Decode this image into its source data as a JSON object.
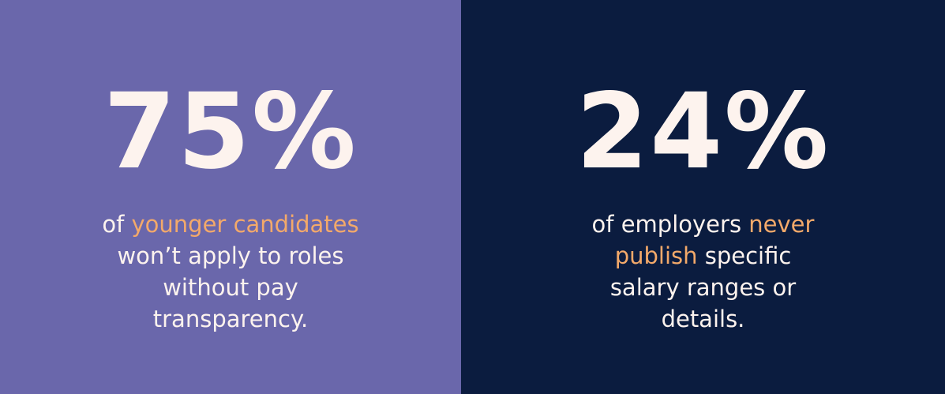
{
  "panels": [
    {
      "stat": "75%",
      "lines": [
        [
          {
            "text": "of "
          },
          {
            "text": "younger candidates",
            "highlight": true
          }
        ],
        [
          {
            "text": "won’t apply to roles"
          }
        ],
        [
          {
            "text": "without pay"
          }
        ],
        [
          {
            "text": "transparency."
          }
        ]
      ]
    },
    {
      "stat": "24%",
      "lines": [
        [
          {
            "text": "of employers "
          },
          {
            "text": "never",
            "highlight": true
          }
        ],
        [
          {
            "text": "publish",
            "highlight": true
          },
          {
            "text": " specific"
          }
        ],
        [
          {
            "text": "salary ranges or"
          }
        ],
        [
          {
            "text": "details."
          }
        ]
      ]
    }
  ]
}
